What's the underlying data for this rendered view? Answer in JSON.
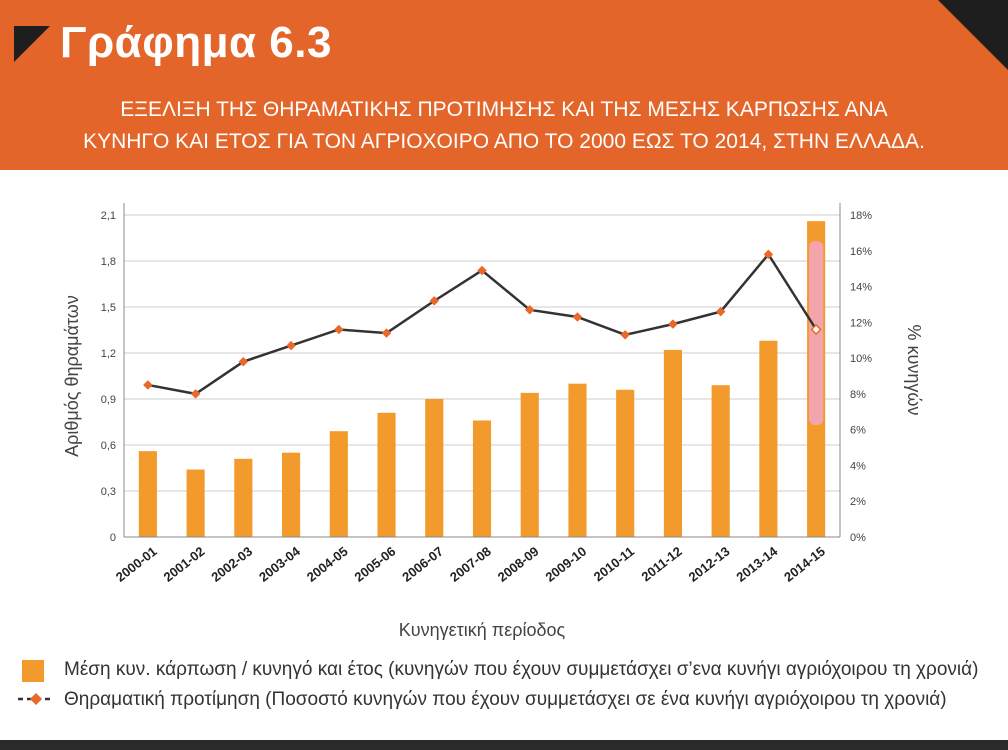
{
  "header": {
    "title": "Γράφημα 6.3",
    "subtitle_line1": "ΕΞΕΛΙΞΗ ΤΗΣ ΘΗΡΑΜΑΤΙΚΗΣ ΠΡΟΤΙΜΗΣΗΣ ΚΑΙ ΤΗΣ ΜΕΣΗΣ ΚΑΡΠΩΣΗΣ ΑΝΑ",
    "subtitle_line2": "ΚΥΝΗΓΟ ΚΑΙ ΕΤΟΣ ΓΙΑ ΤΟΝ ΑΓΡΙΟΧΟΙΡΟ ΑΠΟ ΤΟ 2000 ΕΩΣ ΤΟ 2014, ΣΤΗΝ ΕΛΛΑΔΑ."
  },
  "colors": {
    "banner": "#e4652a",
    "bar": "#f39a2d",
    "line": "#333333",
    "marker": "#e8692a",
    "highlight": "#f2a6c4"
  },
  "chart_data": {
    "type": "bar+line",
    "categories": [
      "2000-01",
      "2001-02",
      "2002-03",
      "2003-04",
      "2004-05",
      "2005-06",
      "2006-07",
      "2007-08",
      "2008-09",
      "2009-10",
      "2010-11",
      "2011-12",
      "2012-13",
      "2013-14",
      "2014-15"
    ],
    "series": [
      {
        "name": "Μέση κυν. κάρπωση / κυνηγό και έτος (κυνηγών που έχουν συμμετάσχει σ’ενα κυνήγι αγριόχοιρου τη χρονιά)",
        "type": "bar",
        "axis": "left",
        "values": [
          0.56,
          0.44,
          0.51,
          0.55,
          0.69,
          0.81,
          0.9,
          0.76,
          0.94,
          1.0,
          0.96,
          1.22,
          0.99,
          1.28,
          2.06
        ]
      },
      {
        "name": "Θηραματική προτίμηση (Ποσοστό κυνηγών που έχουν συμμετάσχει σε ένα κυνήγι αγριόχοιρου τη χρονιά)",
        "type": "line",
        "axis": "right",
        "values": [
          8.5,
          8.0,
          9.8,
          10.7,
          11.6,
          11.4,
          13.2,
          14.9,
          12.7,
          12.3,
          11.3,
          11.9,
          12.6,
          15.8,
          11.6
        ]
      }
    ],
    "xlabel": "Κυνηγετική περίοδος",
    "ylabel_left": "Αριθμός θηραμάτων",
    "ylabel_right": "% κυνηγών",
    "ylim_left": [
      0,
      2.1
    ],
    "ylim_right": [
      0,
      18
    ],
    "yticks_left": [
      "0",
      "0,3",
      "0,6",
      "0,9",
      "1,2",
      "1,5",
      "1,8",
      "2,1"
    ],
    "yticks_right": [
      "0%",
      "2%",
      "4%",
      "6%",
      "8%",
      "10%",
      "12%",
      "14%",
      "16%",
      "18%"
    ],
    "grid": true,
    "legend_position": "bottom"
  }
}
